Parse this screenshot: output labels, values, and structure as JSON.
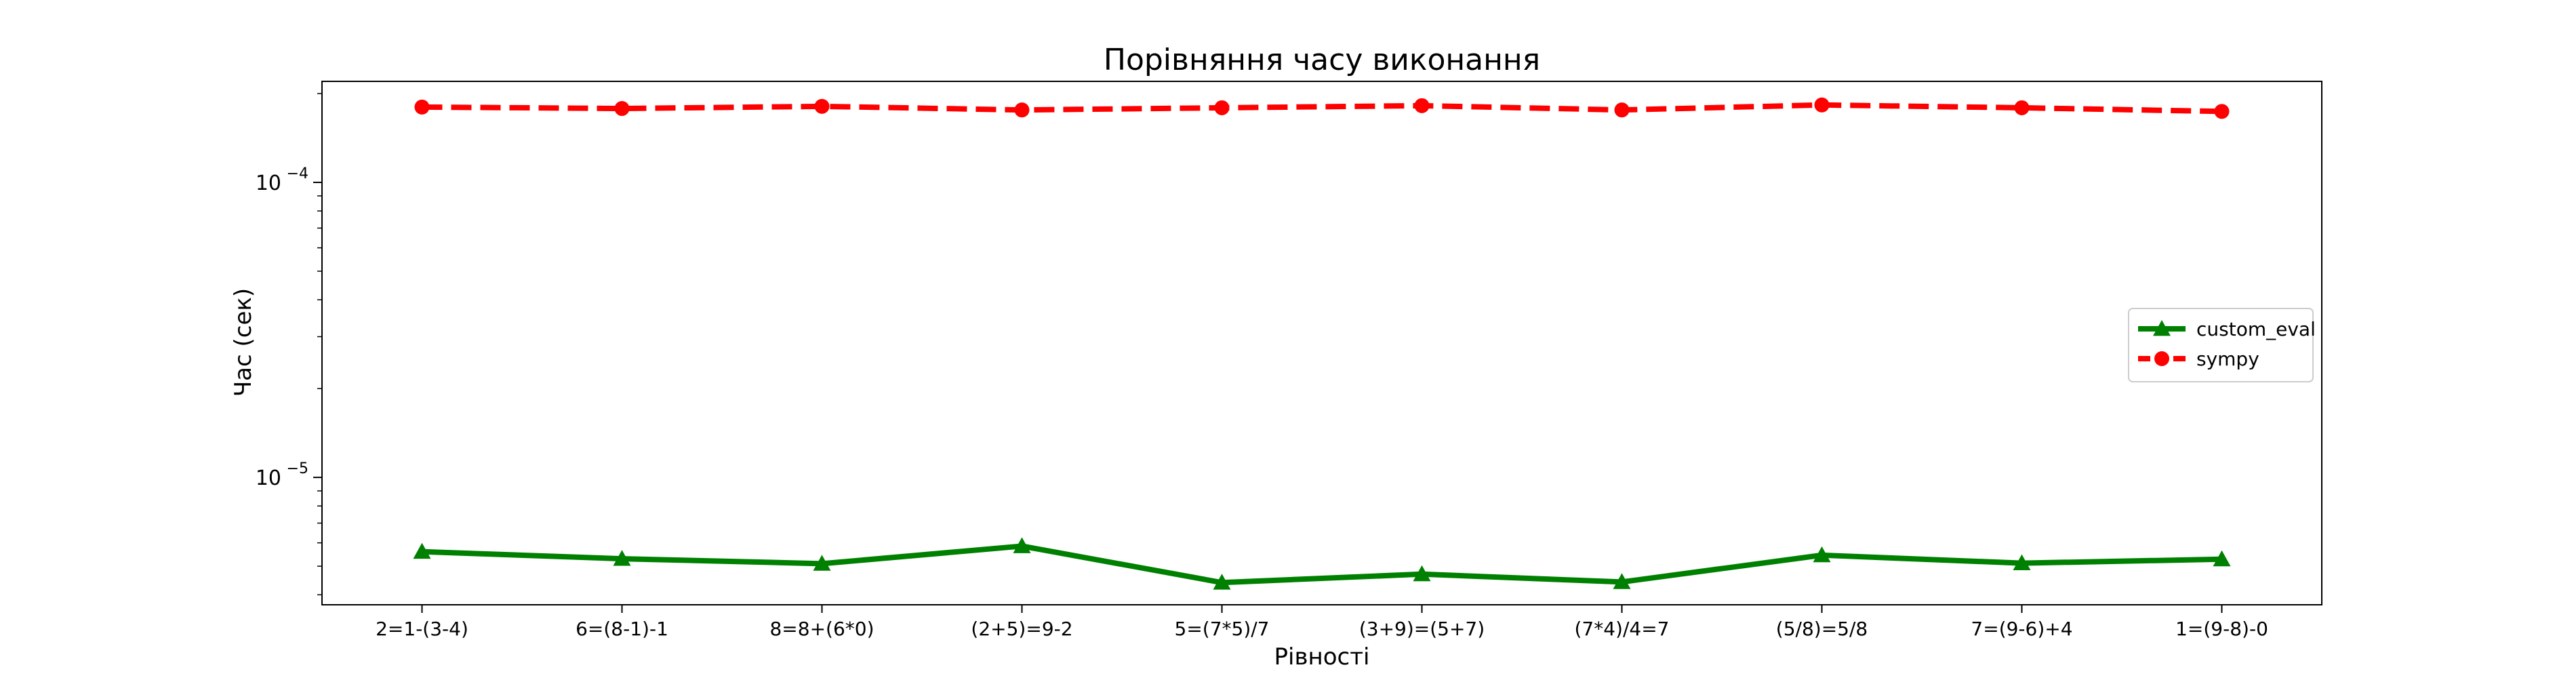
{
  "chart_data": {
    "type": "line",
    "title": "Порівняння часу виконання",
    "xlabel": "Рівності",
    "ylabel": "Час (сек)",
    "yscale": "log",
    "ylim": [
      3.7e-06,
      0.00022
    ],
    "grid": false,
    "legend_position": "center-right",
    "categories": [
      "2=1-(3-4)",
      "6=(8-1)-1",
      "8=8+(6*0)",
      "(2+5)=9-2",
      "5=(7*5)/7",
      "(3+9)=(5+7)",
      "(7*4)/4=7",
      "(5/8)=5/8",
      "7=(9-6)+4",
      "1=(9-8)-0"
    ],
    "y_ticks": [
      {
        "value": 1e-05,
        "base": "10",
        "exp": "−5"
      },
      {
        "value": 0.0001,
        "base": "10",
        "exp": "−4"
      }
    ],
    "series": [
      {
        "name": "custom_eval",
        "color": "#008000",
        "marker": "triangle",
        "dash": "solid",
        "values": [
          5.6e-06,
          5.3e-06,
          5.1e-06,
          5.85e-06,
          4.4e-06,
          4.7e-06,
          4.42e-06,
          5.45e-06,
          5.12e-06,
          5.28e-06
        ]
      },
      {
        "name": "sympy",
        "color": "#ff0000",
        "marker": "circle",
        "dash": "dashed",
        "values": [
          0.00018,
          0.000178,
          0.000181,
          0.000176,
          0.000179,
          0.000182,
          0.000176,
          0.000183,
          0.000179,
          0.000174
        ]
      }
    ]
  }
}
